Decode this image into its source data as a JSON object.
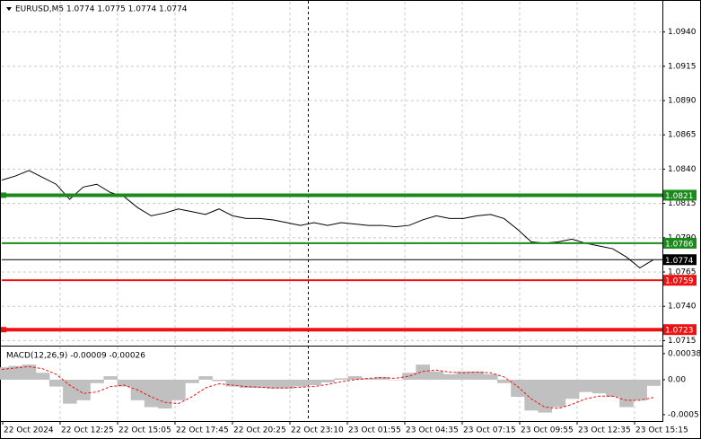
{
  "chart_data": [
    {
      "type": "line",
      "title": "EURUSD,M5  1.0774 1.0775 1.0774 1.0774",
      "color": "#000000",
      "values": [
        1.0832,
        1.0835,
        1.0839,
        1.0834,
        1.0829,
        1.0818,
        1.0827,
        1.0829,
        1.0823,
        1.082,
        1.0812,
        1.0806,
        1.0808,
        1.0811,
        1.0809,
        1.0807,
        1.0811,
        1.0806,
        1.0804,
        1.0804,
        1.0803,
        1.0801,
        1.0799,
        1.0801,
        1.0799,
        1.0801,
        1.08,
        1.0799,
        1.0799,
        1.0798,
        1.0799,
        1.0803,
        1.0806,
        1.0804,
        1.0804,
        1.0806,
        1.0807,
        1.0804,
        1.0796,
        1.0787,
        1.0786,
        1.0787,
        1.0789,
        1.0786,
        1.0784,
        1.0782,
        1.0776,
        1.0768,
        1.0774
      ],
      "x_labels": [
        "22 Oct 2024",
        "22 Oct 12:25",
        "22 Oct 15:05",
        "22 Oct 17:45",
        "22 Oct 20:25",
        "22 Oct 23:10",
        "23 Oct 01:55",
        "23 Oct 04:35",
        "23 Oct 07:15",
        "23 Oct 09:55",
        "23 Oct 12:35",
        "23 Oct 15:15"
      ],
      "ylim": [
        1.0712,
        1.0962
      ],
      "yticks": [
        {
          "value": 1.094,
          "label": "1.0940"
        },
        1.0915,
        {
          "value": 1.089,
          "label": "1.0890"
        },
        1.0865,
        {
          "value": 1.084,
          "label": "1.0840"
        },
        1.0815,
        {
          "value": 1.079,
          "label": "1.0790"
        },
        1.0765,
        {
          "value": 1.074,
          "label": "1.0740"
        },
        1.0715
      ],
      "grid": true,
      "levels": [
        {
          "value": 1.0821,
          "color": "#1a8a1a",
          "width": 4
        },
        {
          "value": 1.0786,
          "color": "#1a8a1a",
          "width": 2
        },
        {
          "value": 1.0774,
          "color": "#000000",
          "width": 1
        },
        {
          "value": 1.0759,
          "color": "#ee1111",
          "width": 2
        },
        {
          "value": 1.0723,
          "color": "#ee1111",
          "width": 4
        }
      ]
    },
    {
      "type": "bar",
      "title": "MACD(12,26,9) -0.00009 -0.00026",
      "color": "#c0c0c0",
      "values": [
        0.00018,
        0.0002,
        0.00022,
        0.0001,
        -0.0001,
        -0.00035,
        -0.0003,
        -5e-05,
        5e-05,
        -0.0001,
        -0.0003,
        -0.0004,
        -0.00042,
        -0.0003,
        -5e-05,
        5e-05,
        -2e-05,
        -0.0001,
        -0.00012,
        -0.00012,
        -0.00013,
        -0.00013,
        -0.0001,
        -8e-05,
        -4e-05,
        2e-05,
        5e-05,
        2e-05,
        4e-05,
        0.0,
        0.0001,
        0.00022,
        0.00012,
        8e-05,
        0.00012,
        0.00012,
        8e-05,
        -5e-05,
        -0.00025,
        -0.00045,
        -0.00048,
        -0.0004,
        -0.00028,
        -0.00018,
        -0.0002,
        -0.00025,
        -0.0004,
        -0.0003,
        -9e-05
      ],
      "signal": {
        "color": "#ee1111",
        "values": [
          0.00015,
          0.00017,
          0.00019,
          0.00016,
          8e-05,
          -8e-05,
          -0.0002,
          -0.00018,
          -0.0001,
          -8e-05,
          -0.00015,
          -0.00025,
          -0.00033,
          -0.00035,
          -0.00025,
          -0.00012,
          -6e-05,
          -8e-05,
          -0.0001,
          -0.00011,
          -0.00012,
          -0.00012,
          -0.00011,
          -0.0001,
          -7e-05,
          -3e-05,
          0.0,
          2e-05,
          3e-05,
          2e-05,
          5e-05,
          0.00012,
          0.00014,
          0.00011,
          0.0001,
          0.00011,
          0.0001,
          4e-05,
          -0.0001,
          -0.00028,
          -0.0004,
          -0.00042,
          -0.00036,
          -0.00028,
          -0.00024,
          -0.00024,
          -0.0003,
          -0.0003,
          -0.00026
        ]
      },
      "ylim": [
        -0.00059,
        0.00047
      ],
      "yticks": [
        0.00038,
        {
          "value": 0,
          "label": "0.00"
        },
        -0.00051
      ]
    }
  ]
}
